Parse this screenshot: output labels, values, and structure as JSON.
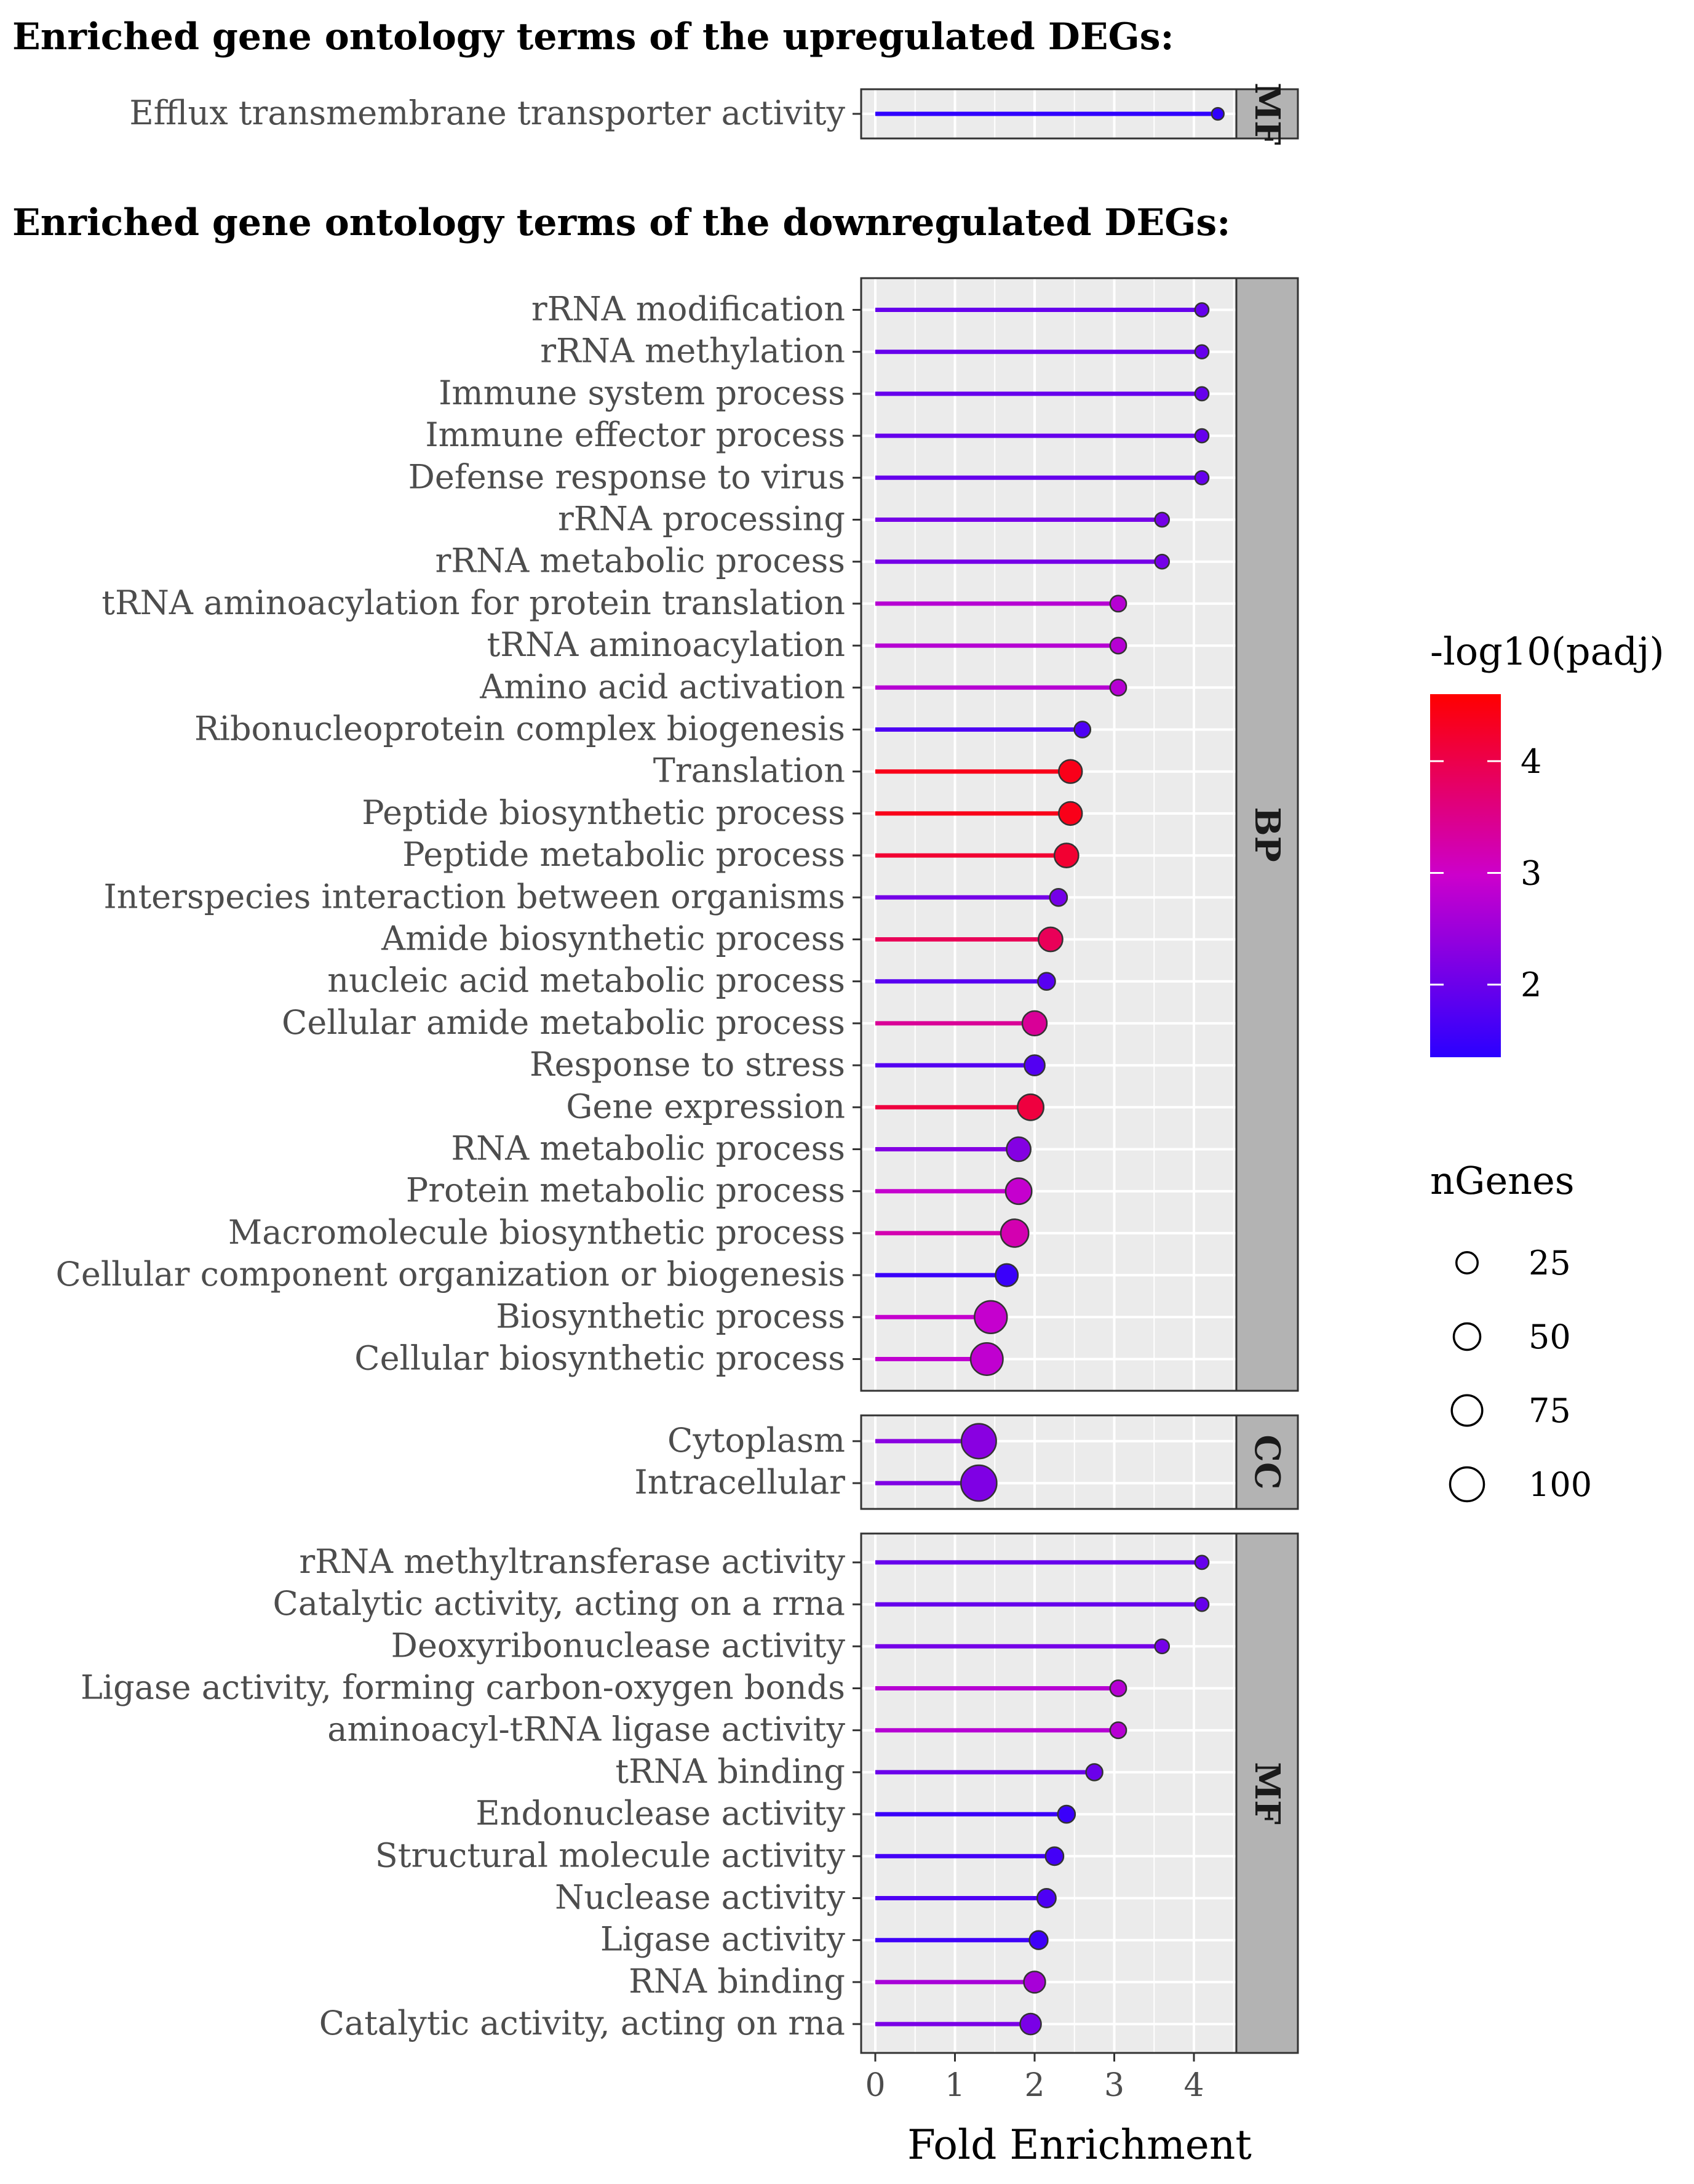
{
  "headings": {
    "up": "Enriched gene ontology terms of the upregulated DEGs:",
    "down": "Enriched gene ontology terms of the downregulated DEGs:"
  },
  "chart_data": {
    "type": "lollipop",
    "xlabel": "Fold Enrichment",
    "xlim": [
      -0.2,
      4.6
    ],
    "x_ticks": [
      "0",
      "1",
      "2",
      "3",
      "4"
    ],
    "color_legend": {
      "title": "-log10(padj)",
      "range": [
        1.35,
        4.6
      ],
      "ticks": [
        "2",
        "3",
        "4"
      ],
      "low_color": "#2B00FF",
      "mid_color": "#CC00CC",
      "high_color": "#FF0000"
    },
    "size_legend": {
      "title": "nGenes",
      "ticks": [
        "25",
        "50",
        "75",
        "100"
      ]
    },
    "panels": [
      {
        "group": "up",
        "strip": "MF",
        "terms": [
          {
            "label": "Efflux transmembrane transporter activity",
            "fold": 4.3,
            "padj": 1.4,
            "genes": 2
          }
        ]
      },
      {
        "group": "down",
        "strip": "BP",
        "terms": [
          {
            "label": "rRNA modification",
            "fold": 4.1,
            "padj": 1.95,
            "genes": 4
          },
          {
            "label": "rRNA methylation",
            "fold": 4.1,
            "padj": 1.95,
            "genes": 4
          },
          {
            "label": "Immune system process",
            "fold": 4.1,
            "padj": 1.95,
            "genes": 4
          },
          {
            "label": "Immune effector process",
            "fold": 4.1,
            "padj": 1.95,
            "genes": 4
          },
          {
            "label": "Defense response to virus",
            "fold": 4.1,
            "padj": 1.95,
            "genes": 4
          },
          {
            "label": "rRNA processing",
            "fold": 3.6,
            "padj": 2.1,
            "genes": 5
          },
          {
            "label": "rRNA metabolic process",
            "fold": 3.6,
            "padj": 2.1,
            "genes": 5
          },
          {
            "label": "tRNA aminoacylation for protein translation",
            "fold": 3.05,
            "padj": 2.75,
            "genes": 9
          },
          {
            "label": "tRNA aminoacylation",
            "fold": 3.05,
            "padj": 2.75,
            "genes": 9
          },
          {
            "label": "Amino acid activation",
            "fold": 3.05,
            "padj": 2.75,
            "genes": 9
          },
          {
            "label": "Ribonucleoprotein complex biogenesis",
            "fold": 2.6,
            "padj": 1.7,
            "genes": 9
          },
          {
            "label": "Translation",
            "fold": 2.45,
            "padj": 4.4,
            "genes": 34
          },
          {
            "label": "Peptide biosynthetic process",
            "fold": 2.45,
            "padj": 4.4,
            "genes": 34
          },
          {
            "label": "Peptide metabolic process",
            "fold": 2.4,
            "padj": 4.2,
            "genes": 38
          },
          {
            "label": "Interspecies interaction between organisms",
            "fold": 2.3,
            "padj": 2.1,
            "genes": 12
          },
          {
            "label": "Amide biosynthetic process",
            "fold": 2.2,
            "padj": 3.9,
            "genes": 38
          },
          {
            "label": "nucleic acid metabolic process",
            "fold": 2.15,
            "padj": 1.8,
            "genes": 12
          },
          {
            "label": "Cellular amide metabolic process",
            "fold": 2.0,
            "padj": 3.4,
            "genes": 40
          },
          {
            "label": "Response to stress",
            "fold": 2.0,
            "padj": 1.75,
            "genes": 22
          },
          {
            "label": "Gene expression",
            "fold": 1.95,
            "padj": 4.1,
            "genes": 48
          },
          {
            "label": "RNA metabolic process",
            "fold": 1.8,
            "padj": 2.25,
            "genes": 38
          },
          {
            "label": "Protein metabolic process",
            "fold": 1.8,
            "padj": 2.9,
            "genes": 48
          },
          {
            "label": "Macromolecule biosynthetic process",
            "fold": 1.75,
            "padj": 3.2,
            "genes": 58
          },
          {
            "label": "Cellular component organization or biogenesis",
            "fold": 1.65,
            "padj": 1.5,
            "genes": 30
          },
          {
            "label": "Biosynthetic process",
            "fold": 1.45,
            "padj": 2.9,
            "genes": 90
          },
          {
            "label": "Cellular biosynthetic process",
            "fold": 1.4,
            "padj": 2.85,
            "genes": 88
          }
        ]
      },
      {
        "group": "down",
        "strip": "CC",
        "terms": [
          {
            "label": "Cytoplasm",
            "fold": 1.3,
            "padj": 2.3,
            "genes": 108
          },
          {
            "label": "Intracellular",
            "fold": 1.3,
            "padj": 2.2,
            "genes": 116
          }
        ]
      },
      {
        "group": "down",
        "strip": "MF",
        "terms": [
          {
            "label": "rRNA methyltransferase activity",
            "fold": 4.1,
            "padj": 1.95,
            "genes": 4
          },
          {
            "label": "Catalytic activity, acting on a rrna",
            "fold": 4.1,
            "padj": 1.95,
            "genes": 4
          },
          {
            "label": "Deoxyribonuclease activity",
            "fold": 3.6,
            "padj": 2.1,
            "genes": 5
          },
          {
            "label": "Ligase activity, forming carbon-oxygen bonds",
            "fold": 3.05,
            "padj": 2.75,
            "genes": 9
          },
          {
            "label": "aminoacyl-tRNA ligase activity",
            "fold": 3.05,
            "padj": 2.75,
            "genes": 9
          },
          {
            "label": "tRNA binding",
            "fold": 2.75,
            "padj": 2.0,
            "genes": 10
          },
          {
            "label": "Endonuclease activity",
            "fold": 2.4,
            "padj": 1.5,
            "genes": 12
          },
          {
            "label": "Structural molecule activity",
            "fold": 2.25,
            "padj": 1.6,
            "genes": 14
          },
          {
            "label": "Nuclease activity",
            "fold": 2.15,
            "padj": 1.7,
            "genes": 16
          },
          {
            "label": "Ligase activity",
            "fold": 2.05,
            "padj": 1.55,
            "genes": 15
          },
          {
            "label": "RNA binding",
            "fold": 2.0,
            "padj": 2.6,
            "genes": 26
          },
          {
            "label": "Catalytic activity, acting on rna",
            "fold": 1.95,
            "padj": 2.15,
            "genes": 24
          }
        ]
      }
    ]
  }
}
